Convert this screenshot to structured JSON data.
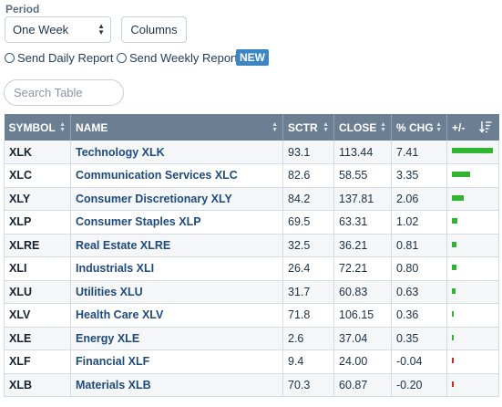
{
  "period": {
    "label": "Period",
    "selected": "One Week"
  },
  "columns_label": "Columns",
  "reports": {
    "daily": "Send Daily Report",
    "weekly": "Send Weekly Report",
    "badge": "NEW"
  },
  "search": {
    "placeholder": "Search Table"
  },
  "table": {
    "headers": [
      "SYMBOL",
      "NAME",
      "SCTR",
      "CLOSE",
      "% CHG",
      "+/-"
    ],
    "rows": [
      {
        "symbol": "XLK",
        "name": "Technology XLK",
        "sctr": "93.1",
        "close": "113.44",
        "chg": "7.41",
        "bar_value": 7.41
      },
      {
        "symbol": "XLC",
        "name": "Communication Services XLC",
        "sctr": "82.6",
        "close": "58.55",
        "chg": "3.35",
        "bar_value": 3.35
      },
      {
        "symbol": "XLY",
        "name": "Consumer Discretionary XLY",
        "sctr": "84.2",
        "close": "137.81",
        "chg": "2.06",
        "bar_value": 2.06
      },
      {
        "symbol": "XLP",
        "name": "Consumer Staples XLP",
        "sctr": "69.5",
        "close": "63.31",
        "chg": "1.02",
        "bar_value": 1.02
      },
      {
        "symbol": "XLRE",
        "name": "Real Estate XLRE",
        "sctr": "32.5",
        "close": "36.21",
        "chg": "0.81",
        "bar_value": 0.81
      },
      {
        "symbol": "XLI",
        "name": "Industrials XLI",
        "sctr": "26.4",
        "close": "72.21",
        "chg": "0.80",
        "bar_value": 0.8
      },
      {
        "symbol": "XLU",
        "name": "Utilities XLU",
        "sctr": "31.7",
        "close": "60.83",
        "chg": "0.63",
        "bar_value": 0.63
      },
      {
        "symbol": "XLV",
        "name": "Health Care XLV",
        "sctr": "71.8",
        "close": "106.15",
        "chg": "0.36",
        "bar_value": 0.36
      },
      {
        "symbol": "XLE",
        "name": "Energy XLE",
        "sctr": "2.6",
        "close": "37.04",
        "chg": "0.35",
        "bar_value": 0.35
      },
      {
        "symbol": "XLF",
        "name": "Financial XLF",
        "sctr": "9.4",
        "close": "24.00",
        "chg": "-0.04",
        "bar_value": -0.04
      },
      {
        "symbol": "XLB",
        "name": "Materials XLB",
        "sctr": "70.3",
        "close": "60.87",
        "chg": "-0.20",
        "bar_value": -0.2
      }
    ]
  },
  "colors": {
    "positive": "#2fb52f",
    "negative": "#c62828",
    "header_bg": "#6c7f92",
    "badge": "#3d86c6"
  }
}
